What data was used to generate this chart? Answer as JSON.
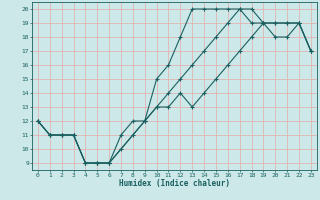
{
  "xlabel": "Humidex (Indice chaleur)",
  "bg_color": "#cce8e8",
  "grid_color": "#aacccc",
  "line_color": "#1a6060",
  "xlim": [
    -0.5,
    23.5
  ],
  "ylim": [
    8.5,
    20.5
  ],
  "xticks": [
    0,
    1,
    2,
    3,
    4,
    5,
    6,
    7,
    8,
    9,
    10,
    11,
    12,
    13,
    14,
    15,
    16,
    17,
    18,
    19,
    20,
    21,
    22,
    23
  ],
  "yticks": [
    9,
    10,
    11,
    12,
    13,
    14,
    15,
    16,
    17,
    18,
    19,
    20
  ],
  "line1_x": [
    0,
    1,
    2,
    3,
    4,
    5,
    6,
    7,
    8,
    9,
    10,
    11,
    12,
    13,
    14,
    15,
    16,
    17,
    18,
    19,
    20,
    21,
    22,
    23
  ],
  "line1_y": [
    12,
    11,
    11,
    11,
    9,
    9,
    9,
    10,
    11,
    12,
    13,
    14,
    15,
    16,
    17,
    18,
    19,
    20,
    20,
    19,
    19,
    19,
    19,
    17
  ],
  "line2_x": [
    0,
    1,
    2,
    3,
    4,
    5,
    6,
    9,
    10,
    11,
    12,
    13,
    14,
    15,
    16,
    17,
    18,
    19,
    20,
    21,
    22,
    23
  ],
  "line2_y": [
    12,
    11,
    11,
    11,
    9,
    9,
    9,
    12,
    15,
    16,
    18,
    20,
    20,
    20,
    20,
    20,
    19,
    19,
    18,
    18,
    19,
    17
  ],
  "line3_x": [
    0,
    1,
    2,
    3,
    4,
    5,
    6,
    7,
    8,
    9,
    10,
    11,
    12,
    13,
    14,
    15,
    16,
    17,
    18,
    19,
    20,
    21,
    22,
    23
  ],
  "line3_y": [
    12,
    11,
    11,
    11,
    9,
    9,
    9,
    11,
    12,
    12,
    13,
    13,
    14,
    13,
    14,
    15,
    16,
    17,
    18,
    19,
    19,
    19,
    19,
    17
  ]
}
